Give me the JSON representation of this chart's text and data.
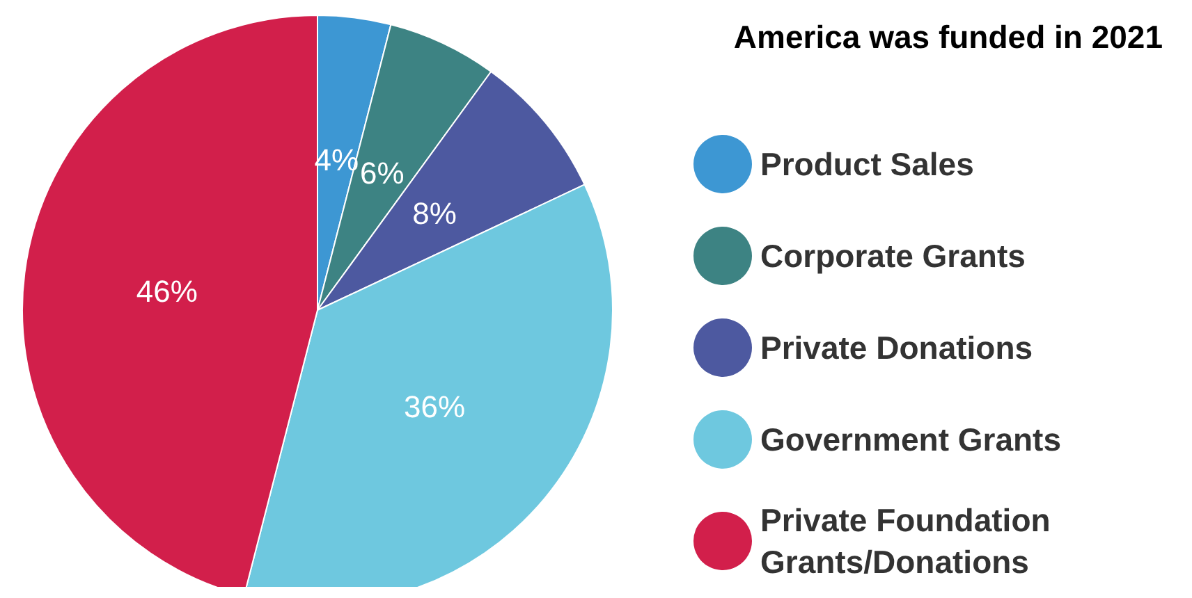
{
  "chart_data": {
    "type": "pie",
    "title": "America was funded in 2021",
    "categories": [
      "Product Sales",
      "Corporate Grants",
      "Private Donations",
      "Government Grants",
      "Private Foundation Grants/Donations"
    ],
    "values": [
      4,
      6,
      8,
      36,
      46
    ],
    "colors": [
      "#3d97d3",
      "#3d8383",
      "#4d59a0",
      "#6ec8df",
      "#d21f4b"
    ],
    "value_labels": [
      "4%",
      "6%",
      "8%",
      "36%",
      "46%"
    ],
    "legend": "right"
  }
}
